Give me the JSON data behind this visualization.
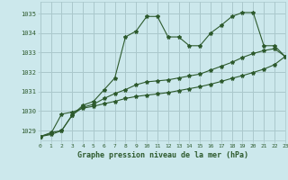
{
  "title": "Graphe pression niveau de la mer (hPa)",
  "bg_color": "#cce8ec",
  "grid_color": "#aac8cc",
  "line_color": "#2d5a2d",
  "ylim": [
    1028.5,
    1035.6
  ],
  "xlim": [
    0,
    23
  ],
  "yticks": [
    1029,
    1030,
    1031,
    1032,
    1033,
    1034,
    1035
  ],
  "xticks": [
    0,
    1,
    2,
    3,
    4,
    5,
    6,
    7,
    8,
    9,
    10,
    11,
    12,
    13,
    14,
    15,
    16,
    17,
    18,
    19,
    20,
    21,
    22,
    23
  ],
  "series": [
    [
      1028.7,
      1028.8,
      1029.0,
      1029.8,
      1030.3,
      1030.5,
      1031.1,
      1031.7,
      1033.8,
      1034.1,
      1034.85,
      1034.85,
      1033.8,
      1033.8,
      1033.35,
      1033.35,
      1034.0,
      1034.4,
      1034.85,
      1035.05,
      1035.05,
      1033.35,
      1033.35,
      1032.8
    ],
    [
      1028.7,
      1028.9,
      1029.0,
      1029.8,
      1030.2,
      1030.35,
      1030.65,
      1030.9,
      1031.1,
      1031.35,
      1031.5,
      1031.55,
      1031.6,
      1031.7,
      1031.8,
      1031.9,
      1032.1,
      1032.3,
      1032.5,
      1032.75,
      1032.95,
      1033.1,
      1033.2,
      1032.8
    ],
    [
      1028.7,
      1028.85,
      1029.85,
      1029.95,
      1030.15,
      1030.25,
      1030.38,
      1030.5,
      1030.65,
      1030.75,
      1030.82,
      1030.88,
      1030.95,
      1031.05,
      1031.15,
      1031.25,
      1031.38,
      1031.52,
      1031.68,
      1031.82,
      1031.98,
      1032.15,
      1032.38,
      1032.8
    ]
  ]
}
